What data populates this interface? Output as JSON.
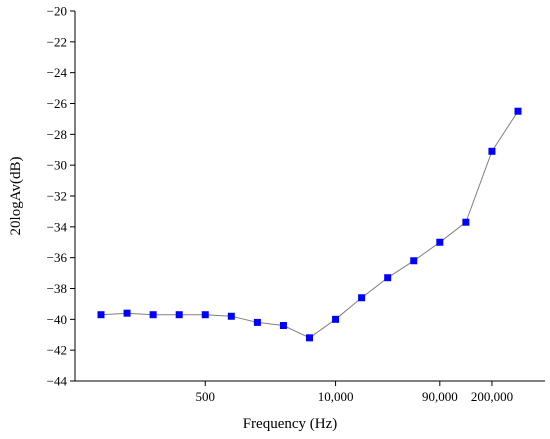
{
  "chart_data": {
    "type": "line",
    "title": "",
    "xlabel": "Frequency (Hz)",
    "ylabel": "20logAv(dB)",
    "x_tick_labels": [
      {
        "label": "500",
        "index": 5
      },
      {
        "label": "10,000",
        "index": 10
      },
      {
        "label": "90,000",
        "index": 14
      },
      {
        "label": "200,000",
        "index": 16
      }
    ],
    "ylim": [
      -44,
      -20
    ],
    "yticks": [
      -20,
      -22,
      -24,
      -26,
      -28,
      -30,
      -32,
      -34,
      -36,
      -38,
      -40,
      -42,
      -44
    ],
    "ytick_labels": [
      "−20",
      "−22",
      "−24",
      "−26",
      "−28",
      "−30",
      "−32",
      "−34",
      "−36",
      "−38",
      "−40",
      "−42",
      "−44"
    ],
    "grid": false,
    "marker": "square",
    "marker_color": "#0000ff",
    "line_color": "#808080",
    "series": [
      {
        "x": [
          1,
          2,
          3,
          4,
          5,
          6,
          7,
          8,
          9,
          10,
          11,
          12,
          13,
          14,
          15,
          16,
          17
        ],
        "values": [
          -39.7,
          -39.6,
          -39.7,
          -39.7,
          -39.7,
          -39.8,
          -40.2,
          -40.4,
          -41.2,
          -40.0,
          -38.6,
          -37.3,
          -36.2,
          -35.0,
          -33.7,
          -29.1,
          -26.5
        ]
      }
    ]
  }
}
